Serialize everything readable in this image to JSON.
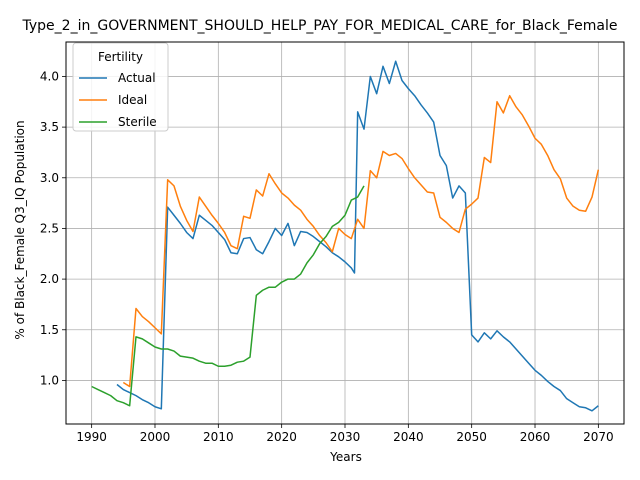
{
  "chart_data": {
    "type": "line",
    "title": "Type_2_in_GOVERNMENT_SHOULD_HELP_PAY_FOR_MEDICAL_CARE_for_Black_Female",
    "xlabel": "Years",
    "ylabel": "% of Black_Female Q3_IQ Population",
    "xlim": [
      1985.95,
      2074.05
    ],
    "ylim": [
      0.57,
      4.34
    ],
    "xticks": [
      1990,
      2000,
      2010,
      2020,
      2030,
      2040,
      2050,
      2060,
      2070
    ],
    "yticks": [
      1.0,
      1.5,
      2.0,
      2.5,
      3.0,
      3.5,
      4.0
    ],
    "grid": true,
    "legend": {
      "title": "Fertility",
      "placement": "upper-left"
    },
    "series": [
      {
        "name": "Actual",
        "color": "#1f77b4",
        "points": [
          [
            1994,
            0.96
          ],
          [
            1995,
            0.91
          ],
          [
            1996,
            0.88
          ],
          [
            1997,
            0.85
          ],
          [
            1998,
            0.81
          ],
          [
            1999,
            0.78
          ],
          [
            2000,
            0.74
          ],
          [
            2001,
            0.72
          ],
          [
            2002,
            2.71
          ],
          [
            2003,
            2.63
          ],
          [
            2004,
            2.55
          ],
          [
            2005,
            2.46
          ],
          [
            2006,
            2.4
          ],
          [
            2007,
            2.63
          ],
          [
            2008,
            2.58
          ],
          [
            2009,
            2.53
          ],
          [
            2010,
            2.46
          ],
          [
            2011,
            2.39
          ],
          [
            2012,
            2.26
          ],
          [
            2013,
            2.25
          ],
          [
            2014,
            2.4
          ],
          [
            2015,
            2.41
          ],
          [
            2016,
            2.29
          ],
          [
            2017,
            2.25
          ],
          [
            2018,
            2.37
          ],
          [
            2019,
            2.5
          ],
          [
            2020,
            2.43
          ],
          [
            2021,
            2.55
          ],
          [
            2022,
            2.33
          ],
          [
            2023,
            2.47
          ],
          [
            2024,
            2.46
          ],
          [
            2025,
            2.42
          ],
          [
            2026,
            2.37
          ],
          [
            2027,
            2.32
          ],
          [
            2028,
            2.26
          ],
          [
            2029,
            2.22
          ],
          [
            2030,
            2.17
          ],
          [
            2031,
            2.11
          ],
          [
            2031.5,
            2.06
          ],
          [
            2032,
            3.65
          ],
          [
            2033,
            3.48
          ],
          [
            2034,
            4.0
          ],
          [
            2035,
            3.83
          ],
          [
            2036,
            4.1
          ],
          [
            2037,
            3.93
          ],
          [
            2038,
            4.15
          ],
          [
            2039,
            3.96
          ],
          [
            2040,
            3.88
          ],
          [
            2041,
            3.81
          ],
          [
            2042,
            3.72
          ],
          [
            2043,
            3.64
          ],
          [
            2044,
            3.55
          ],
          [
            2045,
            3.22
          ],
          [
            2046,
            3.12
          ],
          [
            2047,
            2.8
          ],
          [
            2048,
            2.92
          ],
          [
            2049,
            2.85
          ],
          [
            2050,
            1.45
          ],
          [
            2051,
            1.38
          ],
          [
            2052,
            1.47
          ],
          [
            2053,
            1.41
          ],
          [
            2054,
            1.49
          ],
          [
            2055,
            1.43
          ],
          [
            2056,
            1.38
          ],
          [
            2057,
            1.31
          ],
          [
            2058,
            1.24
          ],
          [
            2059,
            1.17
          ],
          [
            2060,
            1.1
          ],
          [
            2061,
            1.05
          ],
          [
            2062,
            0.99
          ],
          [
            2063,
            0.94
          ],
          [
            2064,
            0.9
          ],
          [
            2065,
            0.82
          ],
          [
            2066,
            0.78
          ],
          [
            2067,
            0.74
          ],
          [
            2068,
            0.73
          ],
          [
            2069,
            0.7
          ],
          [
            2070,
            0.75
          ]
        ]
      },
      {
        "name": "Ideal",
        "color": "#ff7f0e",
        "points": [
          [
            1995,
            0.98
          ],
          [
            1996,
            0.94
          ],
          [
            1997,
            1.71
          ],
          [
            1998,
            1.63
          ],
          [
            1999,
            1.58
          ],
          [
            2000,
            1.52
          ],
          [
            2001,
            1.46
          ],
          [
            2002,
            2.98
          ],
          [
            2003,
            2.92
          ],
          [
            2004,
            2.72
          ],
          [
            2005,
            2.58
          ],
          [
            2006,
            2.47
          ],
          [
            2007,
            2.81
          ],
          [
            2008,
            2.72
          ],
          [
            2009,
            2.63
          ],
          [
            2010,
            2.55
          ],
          [
            2011,
            2.46
          ],
          [
            2012,
            2.33
          ],
          [
            2013,
            2.3
          ],
          [
            2014,
            2.62
          ],
          [
            2015,
            2.6
          ],
          [
            2016,
            2.88
          ],
          [
            2017,
            2.82
          ],
          [
            2018,
            3.04
          ],
          [
            2019,
            2.94
          ],
          [
            2020,
            2.85
          ],
          [
            2021,
            2.8
          ],
          [
            2022,
            2.73
          ],
          [
            2023,
            2.68
          ],
          [
            2024,
            2.59
          ],
          [
            2025,
            2.52
          ],
          [
            2026,
            2.43
          ],
          [
            2027,
            2.36
          ],
          [
            2028,
            2.27
          ],
          [
            2029,
            2.5
          ],
          [
            2030,
            2.44
          ],
          [
            2031,
            2.4
          ],
          [
            2032,
            2.59
          ],
          [
            2033,
            2.5
          ],
          [
            2034,
            3.07
          ],
          [
            2035,
            3.0
          ],
          [
            2036,
            3.26
          ],
          [
            2037,
            3.22
          ],
          [
            2038,
            3.24
          ],
          [
            2039,
            3.19
          ],
          [
            2040,
            3.09
          ],
          [
            2041,
            3.0
          ],
          [
            2042,
            2.93
          ],
          [
            2043,
            2.86
          ],
          [
            2044,
            2.85
          ],
          [
            2045,
            2.61
          ],
          [
            2046,
            2.56
          ],
          [
            2047,
            2.5
          ],
          [
            2048,
            2.46
          ],
          [
            2049,
            2.69
          ],
          [
            2050,
            2.74
          ],
          [
            2051,
            2.8
          ],
          [
            2052,
            3.2
          ],
          [
            2053,
            3.15
          ],
          [
            2054,
            3.75
          ],
          [
            2055,
            3.64
          ],
          [
            2056,
            3.81
          ],
          [
            2057,
            3.7
          ],
          [
            2058,
            3.62
          ],
          [
            2059,
            3.51
          ],
          [
            2060,
            3.39
          ],
          [
            2061,
            3.33
          ],
          [
            2062,
            3.22
          ],
          [
            2063,
            3.08
          ],
          [
            2064,
            2.99
          ],
          [
            2065,
            2.8
          ],
          [
            2066,
            2.72
          ],
          [
            2067,
            2.68
          ],
          [
            2068,
            2.67
          ],
          [
            2069,
            2.81
          ],
          [
            2070,
            3.08
          ]
        ]
      },
      {
        "name": "Sterile",
        "color": "#2ca02c",
        "points": [
          [
            1990,
            0.94
          ],
          [
            1991,
            0.91
          ],
          [
            1992,
            0.88
          ],
          [
            1993,
            0.85
          ],
          [
            1994,
            0.8
          ],
          [
            1995,
            0.78
          ],
          [
            1996,
            0.75
          ],
          [
            1997,
            1.43
          ],
          [
            1998,
            1.41
          ],
          [
            1999,
            1.37
          ],
          [
            2000,
            1.33
          ],
          [
            2001,
            1.31
          ],
          [
            2002,
            1.31
          ],
          [
            2003,
            1.29
          ],
          [
            2004,
            1.24
          ],
          [
            2005,
            1.23
          ],
          [
            2006,
            1.22
          ],
          [
            2007,
            1.19
          ],
          [
            2008,
            1.17
          ],
          [
            2009,
            1.17
          ],
          [
            2010,
            1.14
          ],
          [
            2011,
            1.14
          ],
          [
            2012,
            1.15
          ],
          [
            2013,
            1.18
          ],
          [
            2014,
            1.19
          ],
          [
            2015,
            1.23
          ],
          [
            2016,
            1.84
          ],
          [
            2017,
            1.89
          ],
          [
            2018,
            1.92
          ],
          [
            2019,
            1.92
          ],
          [
            2020,
            1.97
          ],
          [
            2021,
            2.0
          ],
          [
            2022,
            2.0
          ],
          [
            2023,
            2.05
          ],
          [
            2024,
            2.16
          ],
          [
            2025,
            2.24
          ],
          [
            2026,
            2.35
          ],
          [
            2027,
            2.42
          ],
          [
            2028,
            2.52
          ],
          [
            2029,
            2.56
          ],
          [
            2030,
            2.63
          ],
          [
            2031,
            2.78
          ],
          [
            2032,
            2.81
          ],
          [
            2033,
            2.92
          ]
        ]
      }
    ]
  }
}
